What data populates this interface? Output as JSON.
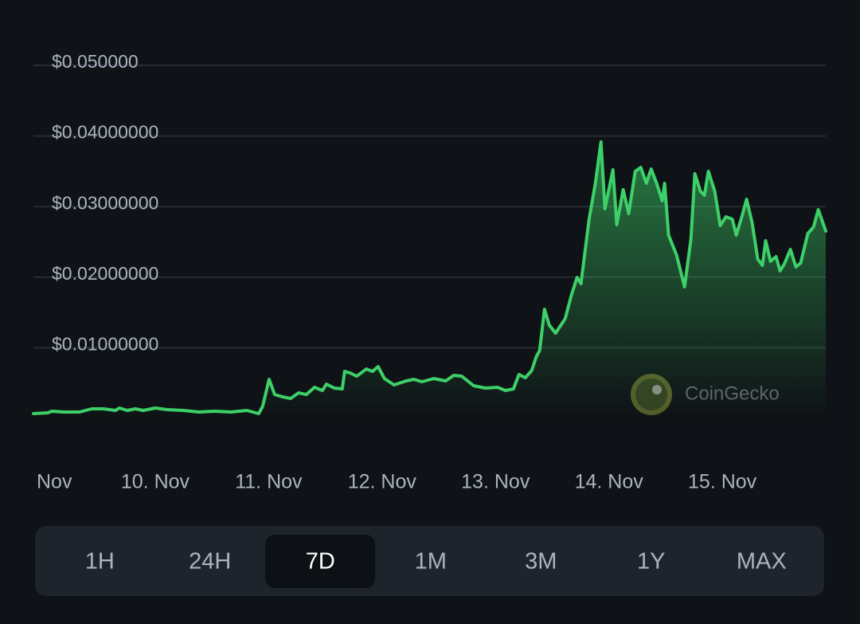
{
  "chart_data": {
    "type": "area-line",
    "x": [
      8.926,
      9.053,
      9.088,
      9.193,
      9.333,
      9.439,
      9.544,
      9.649,
      9.684,
      9.754,
      9.825,
      9.895,
      10.0,
      10.105,
      10.246,
      10.386,
      10.526,
      10.667,
      10.807,
      10.912,
      10.947,
      11.004,
      11.053,
      11.123,
      11.193,
      11.263,
      11.333,
      11.404,
      11.474,
      11.509,
      11.579,
      11.649,
      11.67,
      11.719,
      11.775,
      11.825,
      11.86,
      11.916,
      11.965,
      12.021,
      12.105,
      12.211,
      12.281,
      12.351,
      12.456,
      12.561,
      12.632,
      12.702,
      12.807,
      12.912,
      13.018,
      13.088,
      13.158,
      13.207,
      13.263,
      13.319,
      13.361,
      13.389,
      13.432,
      13.474,
      13.53,
      13.614,
      13.67,
      13.719,
      13.754,
      13.825,
      13.881,
      13.93,
      13.965,
      14.035,
      14.07,
      14.126,
      14.175,
      14.232,
      14.281,
      14.33,
      14.372,
      14.421,
      14.47,
      14.491,
      14.526,
      14.596,
      14.667,
      14.723,
      14.758,
      14.807,
      14.842,
      14.877,
      14.933,
      14.982,
      15.032,
      15.088,
      15.123,
      15.172,
      15.214,
      15.263,
      15.312,
      15.354,
      15.382,
      15.425,
      15.474,
      15.509,
      15.544,
      15.6,
      15.649,
      15.691,
      15.754,
      15.804,
      15.846,
      15.912
    ],
    "values": [
      0.00068,
      0.00079,
      0.00102,
      0.0009,
      0.0009,
      0.00135,
      0.00135,
      0.00113,
      0.00147,
      0.00113,
      0.00135,
      0.00113,
      0.00147,
      0.00124,
      0.00113,
      0.0009,
      0.00102,
      0.0009,
      0.00113,
      0.00068,
      0.00169,
      0.00553,
      0.00339,
      0.00305,
      0.00282,
      0.00361,
      0.00339,
      0.0044,
      0.00395,
      0.00485,
      0.00429,
      0.00418,
      0.00666,
      0.00643,
      0.00598,
      0.00655,
      0.007,
      0.00666,
      0.00734,
      0.00564,
      0.00474,
      0.0053,
      0.00553,
      0.00519,
      0.00564,
      0.0053,
      0.00609,
      0.00598,
      0.00463,
      0.00429,
      0.0044,
      0.00395,
      0.00418,
      0.00622,
      0.00576,
      0.00677,
      0.0088,
      0.00959,
      0.01546,
      0.01321,
      0.01208,
      0.01411,
      0.01749,
      0.01998,
      0.01907,
      0.02822,
      0.0333,
      0.03916,
      0.02968,
      0.03521,
      0.02743,
      0.03239,
      0.02901,
      0.03499,
      0.03555,
      0.0333,
      0.03533,
      0.0333,
      0.03081,
      0.0333,
      0.02596,
      0.02314,
      0.01862,
      0.0254,
      0.03465,
      0.03217,
      0.0316,
      0.03499,
      0.03217,
      0.02731,
      0.02856,
      0.02822,
      0.02596,
      0.02856,
      0.03104,
      0.02765,
      0.02257,
      0.02167,
      0.02517,
      0.02223,
      0.02291,
      0.02088,
      0.02178,
      0.02393,
      0.02144,
      0.02201,
      0.02619,
      0.02709,
      0.02957,
      0.02652
    ],
    "color": "#3dd068",
    "xlim": [
      8.926,
      15.912
    ],
    "ylim": [
      0,
      0.05
    ],
    "yticks": [
      {
        "value": 0.01,
        "label": "$0.01000000"
      },
      {
        "value": 0.02,
        "label": "$0.02000000"
      },
      {
        "value": 0.03,
        "label": "$0.03000000"
      },
      {
        "value": 0.04,
        "label": "$0.04000000"
      },
      {
        "value": 0.05,
        "label": "$0.050000"
      }
    ],
    "xticks": [
      {
        "value": 9,
        "label": "Nov"
      },
      {
        "value": 10,
        "label": "10. Nov"
      },
      {
        "value": 11,
        "label": "11. Nov"
      },
      {
        "value": 12,
        "label": "12. Nov"
      },
      {
        "value": 13,
        "label": "13. Nov"
      },
      {
        "value": 14,
        "label": "14. Nov"
      },
      {
        "value": 15,
        "label": "15. Nov"
      }
    ],
    "grid": true,
    "watermark": "CoinGecko"
  },
  "range_buttons": {
    "options": [
      "1H",
      "24H",
      "7D",
      "1M",
      "3M",
      "1Y",
      "MAX"
    ],
    "selected": "7D"
  }
}
